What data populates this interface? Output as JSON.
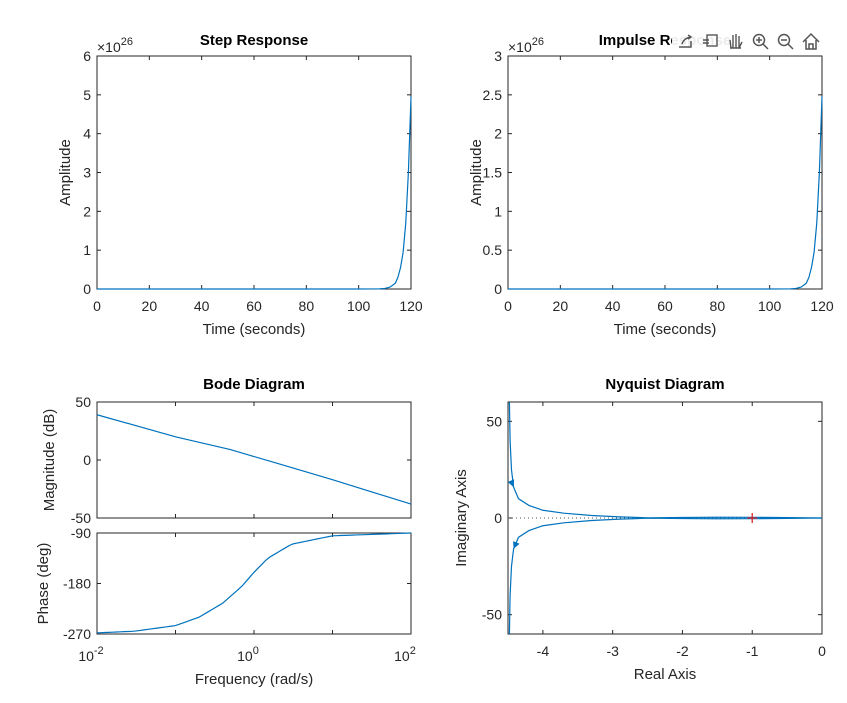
{
  "toolbar": {
    "buttons": [
      {
        "name": "export-icon"
      },
      {
        "name": "brush-icon"
      },
      {
        "name": "pan-hand-icon"
      },
      {
        "name": "zoom-in-icon"
      },
      {
        "name": "zoom-out-icon"
      },
      {
        "name": "home-icon"
      }
    ]
  },
  "chart_data": [
    {
      "type": "line",
      "title": "Step Response",
      "xlabel": "Time (seconds)",
      "ylabel": "Amplitude",
      "exponent_label": "×10",
      "exponent": "26",
      "xlim": [
        0,
        120
      ],
      "ylim": [
        0,
        6
      ],
      "xticks": [
        0,
        20,
        40,
        60,
        80,
        100,
        120
      ],
      "yticks": [
        0,
        1,
        2,
        3,
        4,
        5,
        6
      ],
      "series": [
        {
          "x": [
            0,
            100,
            105,
            108,
            110,
            112,
            114,
            115,
            116,
            117,
            118,
            119,
            120
          ],
          "y": [
            0,
            0,
            0.001,
            0.004,
            0.015,
            0.05,
            0.15,
            0.3,
            0.55,
            0.95,
            1.7,
            3.0,
            4.95
          ]
        }
      ],
      "grid": false
    },
    {
      "type": "line",
      "title": "Impulse Response",
      "xlabel": "Time (seconds)",
      "ylabel": "Amplitude",
      "exponent_label": "×10",
      "exponent": "26",
      "xlim": [
        0,
        120
      ],
      "ylim": [
        0,
        3
      ],
      "xticks": [
        0,
        20,
        40,
        60,
        80,
        100,
        120
      ],
      "yticks": [
        0,
        0.5,
        1,
        1.5,
        2,
        2.5,
        3
      ],
      "series": [
        {
          "x": [
            0,
            100,
            105,
            108,
            110,
            112,
            114,
            115,
            116,
            117,
            118,
            119,
            120
          ],
          "y": [
            0,
            0,
            0.0005,
            0.002,
            0.0075,
            0.025,
            0.075,
            0.15,
            0.28,
            0.48,
            0.85,
            1.5,
            2.48
          ]
        }
      ],
      "grid": false
    },
    {
      "type": "line",
      "title": "Bode Diagram",
      "xlabel": "Frequency  (rad/s)",
      "xscale": "log",
      "xlim": [
        0.01,
        100
      ],
      "xticks": [
        "10^-2",
        "10^0",
        "10^2"
      ],
      "magnitude": {
        "ylabel": "Magnitude (dB)",
        "ylim": [
          -50,
          50
        ],
        "yticks": [
          -50,
          0,
          50
        ],
        "series": [
          {
            "x": [
              0.01,
              0.1,
              0.5,
              1,
              2,
              10,
              100
            ],
            "y": [
              39,
              20,
              9,
              3,
              -3,
              -17,
              -38
            ]
          }
        ]
      },
      "phase": {
        "ylabel": "Phase (deg)",
        "ylim": [
          -270,
          -90
        ],
        "yticks": [
          -270,
          -180,
          -90
        ],
        "series": [
          {
            "x": [
              0.01,
              0.03,
              0.1,
              0.2,
              0.4,
              0.7,
              1,
              1.5,
              3,
              10,
              100
            ],
            "y": [
              -268,
              -265,
              -255,
              -240,
              -215,
              -185,
              -160,
              -135,
              -110,
              -95,
              -90
            ]
          }
        ]
      },
      "grid": false
    },
    {
      "type": "line",
      "title": "Nyquist Diagram",
      "xlabel": "Real Axis",
      "ylabel": "Imaginary Axis",
      "xlim": [
        -4.5,
        0
      ],
      "ylim": [
        -60,
        60
      ],
      "xticks": [
        -4,
        -3,
        -2,
        -1,
        0
      ],
      "yticks": [
        -50,
        0,
        50
      ],
      "critical_point": {
        "x": -1,
        "y": 0
      },
      "series": [
        {
          "name": "positive frequencies",
          "x": [
            -4.48,
            -4.47,
            -4.45,
            -4.42,
            -4.35,
            -4.2,
            -4.0,
            -3.7,
            -3.3,
            -2.9,
            -2.5,
            -2.0,
            -1.5,
            -1.0,
            -0.5,
            0
          ],
          "y": [
            60,
            40,
            25,
            16,
            10,
            6.5,
            4,
            2.5,
            1.3,
            0.6,
            0.1,
            0.3,
            0.4,
            0.35,
            0.2,
            0
          ]
        },
        {
          "name": "negative frequencies",
          "x": [
            -4.48,
            -4.47,
            -4.45,
            -4.42,
            -4.35,
            -4.2,
            -4.0,
            -3.7,
            -3.3,
            -2.9,
            -2.5,
            -2.0,
            -1.5,
            -1.0,
            -0.5,
            0
          ],
          "y": [
            -60,
            -40,
            -25,
            -16,
            -10,
            -6.5,
            -4,
            -2.5,
            -1.3,
            -0.6,
            -0.1,
            -0.3,
            -0.4,
            -0.35,
            -0.2,
            0
          ]
        }
      ],
      "grid": false
    }
  ]
}
